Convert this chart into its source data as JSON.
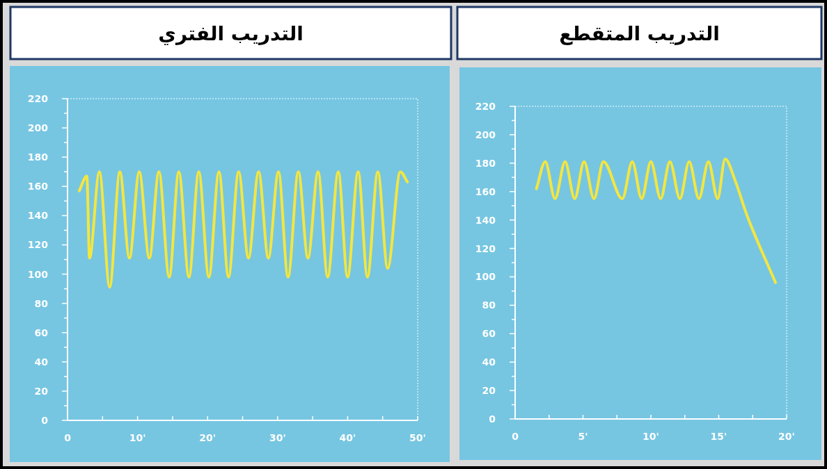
{
  "chart_data": [
    {
      "type": "line",
      "title": "التدريب الفتري",
      "x": [
        1.67,
        2.76,
        3.14,
        4.55,
        6.02,
        7.47,
        8.84,
        10.24,
        11.68,
        13.05,
        14.52,
        15.89,
        17.34,
        18.74,
        20.18,
        21.62,
        22.99,
        24.43,
        25.84,
        27.28,
        28.68,
        30.12,
        31.49,
        32.96,
        34.33,
        35.78,
        37.15,
        38.66,
        39.99,
        41.5,
        42.83,
        44.31,
        45.71,
        47.53,
        48.53
      ],
      "series": [
        {
          "color": "#f3e640",
          "values": [
            157,
            167,
            111,
            170,
            91,
            170,
            111,
            170,
            111,
            170,
            98,
            170,
            98,
            170,
            98,
            170,
            98,
            170,
            111,
            170,
            111,
            170,
            98,
            170,
            111,
            170,
            98,
            170,
            98,
            170,
            98,
            170,
            104,
            170,
            163
          ]
        }
      ],
      "xlim": [
        0,
        50
      ],
      "xticks": [
        0,
        {
          "value": 5,
          "label": null
        },
        {
          "value": 10,
          "label": "10'"
        },
        {
          "value": 15,
          "label": null
        },
        {
          "value": 20,
          "label": "20'"
        },
        {
          "value": 25,
          "label": null
        },
        {
          "value": 30,
          "label": "30'"
        },
        {
          "value": 35,
          "label": null
        },
        {
          "value": 40,
          "label": "40'"
        },
        {
          "value": 45,
          "label": null
        },
        {
          "value": 50,
          "label": "50'"
        }
      ],
      "ylim": [
        0,
        220
      ],
      "yticks": [
        0,
        {
          "value": 10,
          "label": null
        },
        20,
        {
          "value": 30,
          "label": null
        },
        40,
        {
          "value": 50,
          "label": null
        },
        60,
        {
          "value": 70,
          "label": null
        },
        80,
        {
          "value": 90,
          "label": null
        },
        100,
        {
          "value": 110,
          "label": null
        },
        120,
        {
          "value": 130,
          "label": null
        },
        140,
        {
          "value": 150,
          "label": null
        },
        160,
        {
          "value": 170,
          "label": null
        },
        180,
        {
          "value": 190,
          "label": null
        },
        200,
        {
          "value": 210,
          "label": null
        },
        220
      ],
      "line_style": "solid",
      "marker": "none",
      "grid": false
    },
    {
      "type": "line",
      "title": "التدريب المتقطع",
      "x": [
        1.57,
        2.22,
        2.94,
        3.68,
        4.39,
        5.08,
        5.81,
        6.5,
        7.9,
        8.63,
        9.32,
        10,
        10.72,
        11.4,
        12.14,
        12.82,
        13.54,
        14.24,
        14.92,
        15.47,
        16.2,
        17.09,
        19.18
      ],
      "series": [
        {
          "color": "#f3e640",
          "values": [
            162,
            181,
            155,
            181,
            155,
            181,
            155,
            181,
            155,
            181,
            155,
            181,
            155,
            181,
            155,
            181,
            155,
            181,
            155,
            183,
            168,
            143,
            96
          ]
        }
      ],
      "xlim": [
        0,
        20
      ],
      "xticks": [
        0,
        {
          "value": 2.5,
          "label": null
        },
        {
          "value": 5,
          "label": "5'"
        },
        {
          "value": 7.5,
          "label": null
        },
        {
          "value": 10,
          "label": "10'"
        },
        {
          "value": 12.5,
          "label": null
        },
        {
          "value": 15,
          "label": "15'"
        },
        {
          "value": 17.5,
          "label": null
        },
        {
          "value": 20,
          "label": "20'"
        }
      ],
      "ylim": [
        0,
        220
      ],
      "yticks": [
        0,
        {
          "value": 10,
          "label": null
        },
        20,
        {
          "value": 30,
          "label": null
        },
        40,
        {
          "value": 50,
          "label": null
        },
        60,
        {
          "value": 70,
          "label": null
        },
        80,
        {
          "value": 90,
          "label": null
        },
        100,
        {
          "value": 110,
          "label": null
        },
        120,
        {
          "value": 130,
          "label": null
        },
        140,
        {
          "value": 150,
          "label": null
        },
        160,
        {
          "value": 170,
          "label": null
        },
        180,
        {
          "value": 190,
          "label": null
        },
        200,
        {
          "value": 210,
          "label": null
        },
        220
      ],
      "line_style": "solid",
      "marker": "none",
      "grid": false
    }
  ]
}
